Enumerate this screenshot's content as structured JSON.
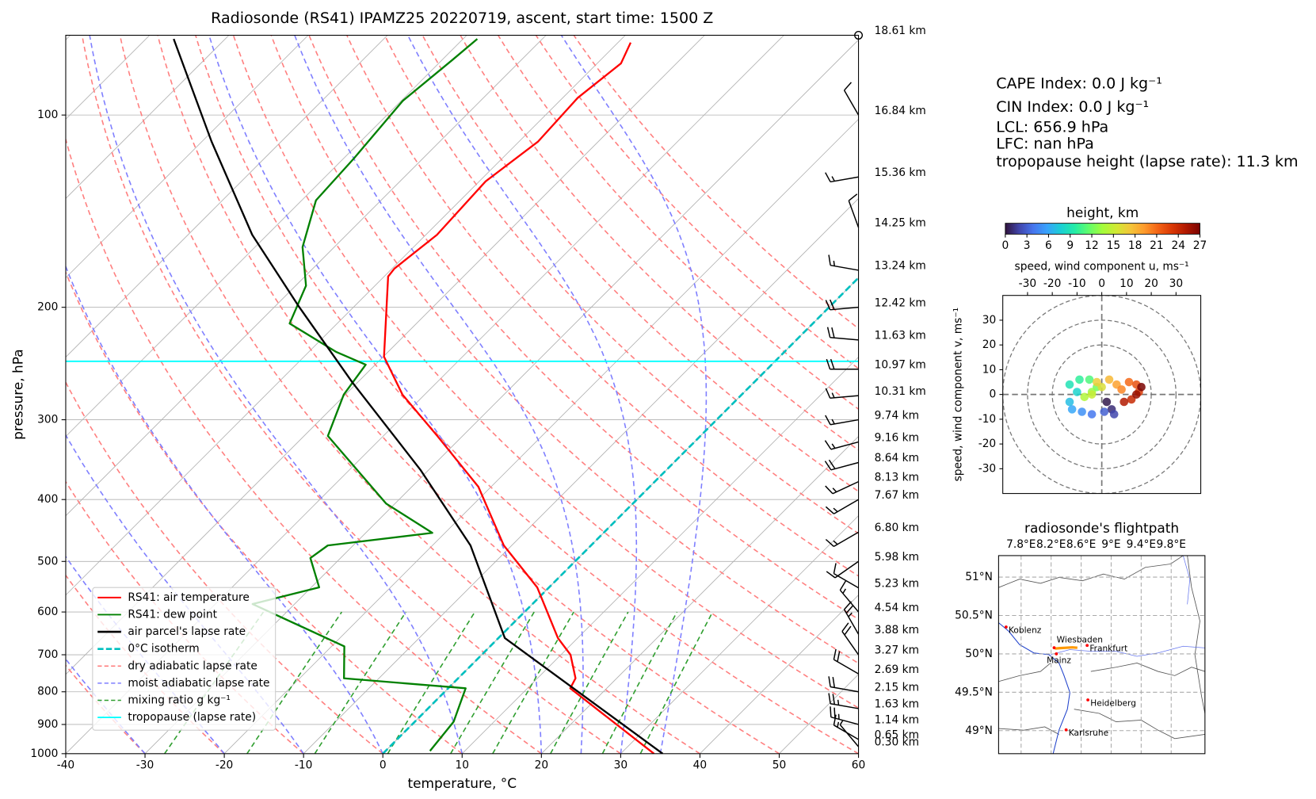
{
  "chart_data": [
    {
      "type": "skewt",
      "title": "Radiosonde (RS41) IPAMZ25 20220719, ascent, start time: 1500 Z",
      "xlabel": "temperature, °C",
      "ylabel": "pressure, hPa",
      "xlim": [
        -40,
        60
      ],
      "ylim": [
        1000,
        75
      ],
      "xticks": [
        -40,
        -30,
        -20,
        -10,
        0,
        10,
        20,
        30,
        40,
        50,
        60
      ],
      "yticks": [
        100,
        200,
        300,
        400,
        500,
        600,
        700,
        800,
        900,
        1000
      ],
      "log_y": true,
      "skew": 45,
      "grid": true,
      "legend": "lower left",
      "series": [
        {
          "name": "RS41: air temperature",
          "color": "#ff0000",
          "pressure": [
            1000,
            790,
            762,
            700,
            659,
            549,
            472,
            382,
            318,
            274,
            239,
            179,
            174,
            154,
            127,
            110,
            94,
            83,
            77
          ],
          "values": [
            34.2,
            15.4,
            14.8,
            11.2,
            7.5,
            -1.5,
            -11,
            -21.6,
            -33.2,
            -42.8,
            -49.9,
            -59.5,
            -59.7,
            -58.6,
            -59.2,
            -57.6,
            -58.1,
            -57,
            -58.4
          ]
        },
        {
          "name": "RS41: dew point",
          "color": "#008000",
          "pressure": [
            990,
            891,
            790,
            762,
            679,
            583,
            549,
            494,
            472,
            451,
            406,
            318,
            274,
            246,
            235,
            212,
            185,
            161,
            136,
            117,
            95,
            82,
            76
          ],
          "values": [
            5.6,
            4.9,
            2.2,
            -14.4,
            -18.4,
            -35.3,
            -29,
            -33.8,
            -33.2,
            -21.6,
            -31.1,
            -47,
            -50.2,
            -51.2,
            -56.5,
            -66,
            -68.7,
            -74,
            -78.2,
            -78.7,
            -79.8,
            -78.7,
            -78.2
          ]
        },
        {
          "name": "air parcel's lapse rate",
          "color": "#000000",
          "pressure": [
            1000,
            659,
            472,
            359,
            262,
            199,
            154,
            110,
            76
          ],
          "values": [
            35.3,
            0.8,
            -15.2,
            -31.1,
            -50.7,
            -67.1,
            -81.9,
            -98.8,
            -116.5
          ]
        }
      ],
      "isotherm": {
        "name": "0°C isotherm",
        "color": "#00bfbf",
        "value": 0
      },
      "dry_adiabats": {
        "name": "dry adiabatic lapse rate",
        "color": "#ff7f7f",
        "values": [
          -30,
          -20,
          -10,
          0,
          10,
          20,
          30,
          40,
          50,
          60,
          70,
          80,
          90,
          100,
          110,
          120,
          130,
          140,
          150,
          160
        ]
      },
      "moist_adiabats": {
        "name": "moist adiabatic lapse rate",
        "color": "#7f7fff",
        "values": [
          -30,
          -20,
          -10,
          0,
          10,
          20,
          25,
          30,
          35
        ]
      },
      "mixing_ratios": {
        "name": "mixing ratio g kg⁻¹",
        "color": "#2e9e2e",
        "values": [
          0.4,
          1,
          2,
          4,
          7,
          10,
          16,
          24,
          32
        ],
        "top_pressure": 600
      },
      "tropopause": {
        "name": "tropopause (lapse rate)",
        "color": "#00ffff",
        "pressure": 243
      },
      "winds": {
        "pressure": [
          75,
          100,
          125,
          150,
          175,
          200,
          225,
          250,
          275,
          300,
          325,
          350,
          375,
          400,
          450,
          500,
          550,
          600,
          650,
          700,
          750,
          800,
          850,
          900,
          950,
          975
        ],
        "height_labels": [
          "18.61 km",
          "16.84 km",
          "15.36 km",
          "14.25 km",
          "13.24 km",
          "12.42 km",
          "11.63 km",
          "10.97 km",
          "10.31 km",
          "9.74 km",
          "9.16 km",
          "8.64 km",
          "8.13 km",
          "7.67 km",
          "6.80 km",
          "5.98 km",
          "5.23 km",
          "4.54 km",
          "3.88 km",
          "3.27 km",
          "2.69 km",
          "2.15 km",
          "1.63 km",
          "1.14 km",
          "0.65 km",
          "0.30 km"
        ],
        "direction": [
          0,
          330,
          260,
          340,
          280,
          265,
          275,
          270,
          265,
          260,
          255,
          255,
          245,
          240,
          240,
          235,
          300,
          320,
          330,
          325,
          300,
          280,
          280,
          285,
          300,
          320
        ],
        "speed": [
          0,
          10,
          15,
          10,
          15,
          20,
          20,
          20,
          15,
          15,
          15,
          20,
          15,
          15,
          15,
          10,
          10,
          15,
          25,
          20,
          20,
          20,
          25,
          25,
          15,
          5
        ]
      }
    },
    {
      "type": "hodograph",
      "xlabel": "speed, wind component u, ms⁻¹",
      "ylabel": "speed, wind component v, ms⁻¹",
      "xlim": [
        -40,
        40
      ],
      "ylim": [
        -40,
        40
      ],
      "xticks": [
        -30,
        -20,
        -10,
        0,
        10,
        20,
        30
      ],
      "yticks": [
        -30,
        -20,
        -10,
        0,
        10,
        20,
        30
      ],
      "rings": [
        20,
        30,
        40
      ],
      "height": [
        0.3,
        1,
        2,
        3,
        4,
        5,
        6,
        7,
        8,
        9,
        10,
        11,
        12,
        13,
        14,
        15,
        16,
        17,
        18,
        19,
        20,
        21,
        22,
        23,
        24,
        25,
        26,
        27
      ],
      "u": [
        2,
        4,
        5,
        1,
        -4,
        -8,
        -12,
        -13,
        -10,
        -13,
        -9,
        -5,
        -2,
        -4,
        -7,
        -4,
        0,
        -2,
        3,
        6,
        8,
        11,
        14,
        15,
        12,
        9,
        14,
        16
      ],
      "v": [
        -3,
        -6,
        -8,
        -7,
        -8,
        -7,
        -6,
        -3,
        1,
        4,
        6,
        6,
        3,
        1,
        -1,
        0,
        3,
        5,
        6,
        4,
        2,
        5,
        4,
        1,
        -2,
        -3,
        0,
        3
      ],
      "colorbar": {
        "title": "height, km",
        "lim": [
          0,
          27
        ],
        "ticks": [
          0,
          3,
          6,
          9,
          12,
          15,
          18,
          21,
          24,
          27
        ],
        "colors": [
          "#30123b",
          "#4145ab",
          "#4675ed",
          "#39a2fc",
          "#1bcfd4",
          "#24eca6",
          "#61fc6c",
          "#a4fc3b",
          "#d1e834",
          "#f3c63a",
          "#fe9b2d",
          "#f36315",
          "#d93806",
          "#b11901",
          "#7a0402"
        ]
      }
    },
    {
      "type": "map",
      "title": "radiosonde's flightpath",
      "xlim": [
        7.5,
        10.25
      ],
      "ylim": [
        48.7,
        51.28
      ],
      "xticks": [
        {
          "value": 7.8,
          "label": "7.8°E"
        },
        {
          "value": 8.2,
          "label": "8.2°E"
        },
        {
          "value": 8.6,
          "label": "8.6°E"
        },
        {
          "value": 9,
          "label": "9°E"
        },
        {
          "value": 9.4,
          "label": "9.4°E"
        },
        {
          "value": 9.8,
          "label": "9.8°E"
        }
      ],
      "yticks": [
        {
          "value": 49,
          "label": "49°N"
        },
        {
          "value": 49.5,
          "label": "49.5°N"
        },
        {
          "value": 50,
          "label": "50°N"
        },
        {
          "value": 50.5,
          "label": "50.5°N"
        },
        {
          "value": 51,
          "label": "51°N"
        }
      ],
      "cities": {
        "color": "#ff0000",
        "names": [
          "Koblenz",
          "Wiesbaden",
          "Frankfurt",
          "Mainz",
          "Heidelberg",
          "Karlsruhe"
        ],
        "lon": [
          7.6,
          8.24,
          8.68,
          8.27,
          8.69,
          8.4
        ],
        "lat": [
          50.35,
          50.08,
          50.11,
          50.0,
          49.4,
          49.01
        ]
      },
      "flight": {
        "color": "#ff9900",
        "lon": [
          8.25,
          8.32,
          8.4,
          8.48,
          8.55
        ],
        "lat": [
          50.07,
          50.075,
          50.08,
          50.085,
          50.08
        ]
      }
    }
  ],
  "info": [
    "CAPE Index: 0.0 J kg⁻¹",
    "CIN Index: 0.0 J kg⁻¹",
    "LCL: 656.9 hPa",
    "LFC: nan hPa",
    "tropopause height (lapse rate): 11.3 km"
  ]
}
